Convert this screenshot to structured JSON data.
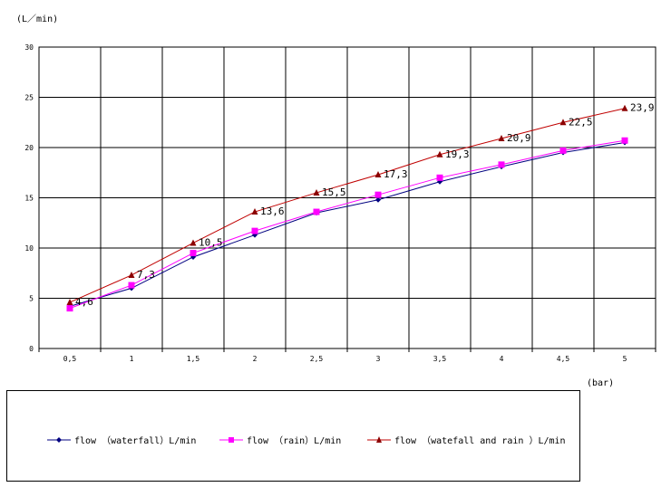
{
  "chart_data": {
    "type": "line",
    "ylabel": "(L／min)",
    "xlabel": "(bar)",
    "ylim": [
      0,
      30
    ],
    "yticks": [
      "0",
      "5",
      "10",
      "15",
      "20",
      "25",
      "30"
    ],
    "categories": [
      "0,5",
      "1",
      "1,5",
      "2",
      "2,5",
      "3",
      "3,5",
      "4",
      "4,5",
      "5"
    ],
    "grid": true,
    "legend_position": "bottom",
    "series": [
      {
        "name": "flow （waterfall）L/min",
        "color": "#000080",
        "marker": "diamond",
        "values": [
          4.2,
          6.0,
          9.1,
          11.3,
          13.5,
          14.8,
          16.6,
          18.1,
          19.5,
          20.5
        ]
      },
      {
        "name": "flow （rain）L/min",
        "color": "#ff00ff",
        "marker": "square",
        "values": [
          4.0,
          6.3,
          9.5,
          11.7,
          13.6,
          15.3,
          17.0,
          18.3,
          19.7,
          20.7
        ]
      },
      {
        "name": "flow （watefall and rain ）L/min",
        "color": "#c00000",
        "marker": "triangle",
        "values": [
          4.6,
          7.3,
          10.5,
          13.6,
          15.5,
          17.3,
          19.3,
          20.9,
          22.5,
          23.9
        ],
        "labels": [
          "4,6",
          "7,3",
          "10,5",
          "13,6",
          "15,5",
          "17,3",
          "19,3",
          "20,9",
          "22,5",
          "23,9"
        ]
      }
    ]
  }
}
